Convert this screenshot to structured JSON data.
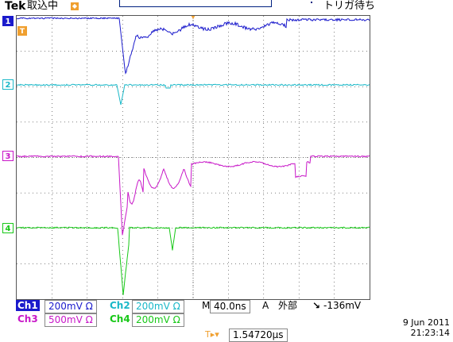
{
  "header": {
    "brand": "Tek",
    "status": "取込中",
    "trigger_state": "トリガ待ち"
  },
  "channels": [
    {
      "id": "1",
      "name": "Ch1",
      "scale": "200mV Ω",
      "color": "#1a1acc"
    },
    {
      "id": "2",
      "name": "Ch2",
      "scale": "200mV Ω",
      "color": "#1ab8c8"
    },
    {
      "id": "3",
      "name": "Ch3",
      "scale": "500mV Ω",
      "color": "#c818c8"
    },
    {
      "id": "4",
      "name": "Ch4",
      "scale": "200mV Ω",
      "color": "#18c818"
    }
  ],
  "timebase": {
    "label": "M",
    "value": "40.0ns"
  },
  "trigger": {
    "mode": "A",
    "source": "外部",
    "slope_icon": "falling-edge-icon",
    "level": "-136mV"
  },
  "position": {
    "value": "1.54720µs"
  },
  "datetime": {
    "date": "9 Jun 2011",
    "time": "21:23:14"
  }
}
